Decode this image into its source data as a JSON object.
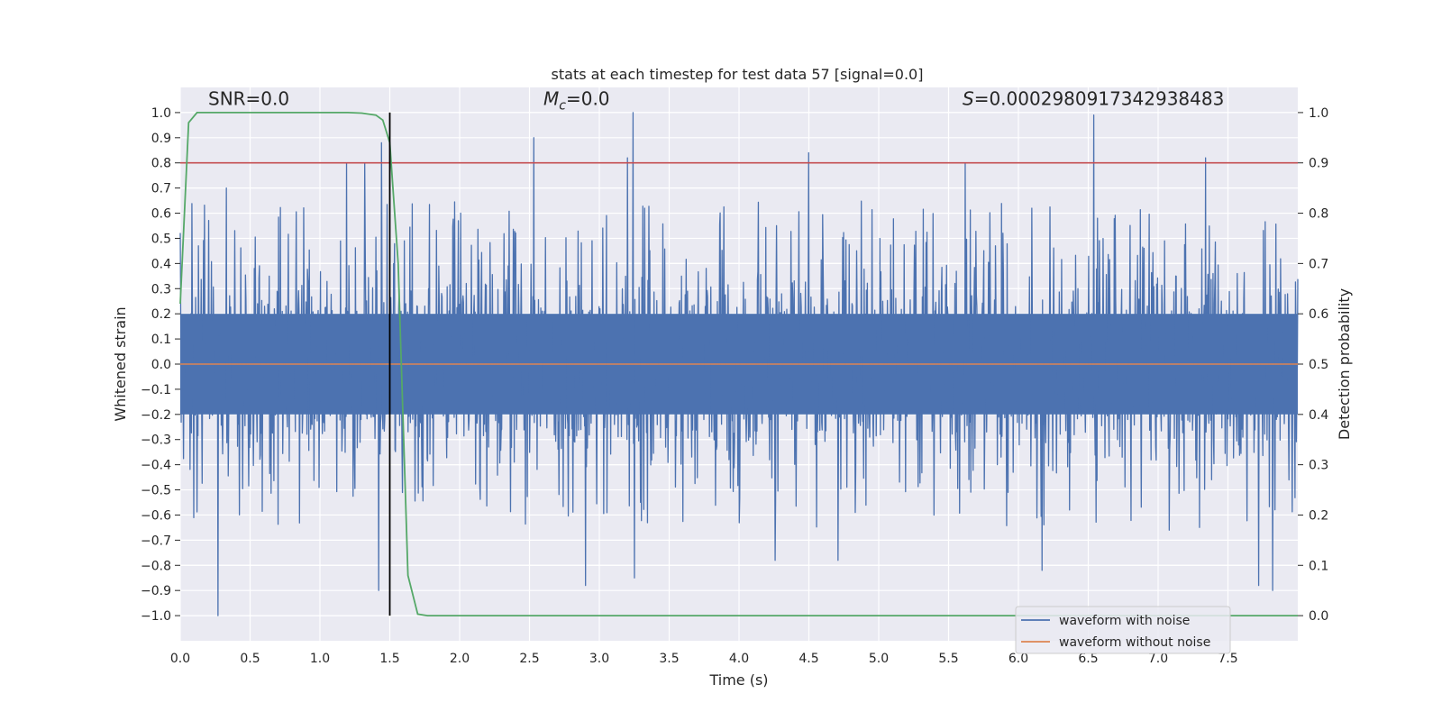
{
  "chart_data": {
    "type": "line",
    "title": "stats at each timestep for test data 57 [signal=0.0]",
    "xlabel": "Time (s)",
    "ylabel": "Whitened strain",
    "y2label": "Detection probability",
    "xlim": [
      0.0,
      8.0
    ],
    "ylim": [
      -1.1,
      1.1
    ],
    "y2lim": [
      -0.05,
      1.05
    ],
    "x_ticks": [
      0.0,
      0.5,
      1.0,
      1.5,
      2.0,
      2.5,
      3.0,
      3.5,
      4.0,
      4.5,
      5.0,
      5.5,
      6.0,
      6.5,
      7.0,
      7.5
    ],
    "x_tick_labels": [
      "0.0",
      "0.5",
      "1.0",
      "1.5",
      "2.0",
      "2.5",
      "3.0",
      "3.5",
      "4.0",
      "4.5",
      "5.0",
      "5.5",
      "6.0",
      "6.5",
      "7.0",
      "7.5"
    ],
    "y_ticks": [
      1.0,
      0.9,
      0.8,
      0.7,
      0.6,
      0.5,
      0.4,
      0.3,
      0.2,
      0.1,
      0.0,
      -0.1,
      -0.2,
      -0.3,
      -0.4,
      -0.5,
      -0.6,
      -0.7,
      -0.8,
      -0.9,
      -1.0
    ],
    "y_tick_labels": [
      "1.0",
      "0.9",
      "0.8",
      "0.7",
      "0.6",
      "0.5",
      "0.4",
      "0.3",
      "0.2",
      "0.1",
      "0.0",
      "−0.1",
      "−0.2",
      "−0.3",
      "−0.4",
      "−0.5",
      "−0.6",
      "−0.7",
      "−0.8",
      "−0.9",
      "−1.0"
    ],
    "y2_ticks": [
      1.0,
      0.9,
      0.8,
      0.7,
      0.6,
      0.5,
      0.4,
      0.3,
      0.2,
      0.1,
      0.0
    ],
    "y2_tick_labels": [
      "1.0",
      "0.9",
      "0.8",
      "0.7",
      "0.6",
      "0.5",
      "0.4",
      "0.3",
      "0.2",
      "0.1",
      "0.0"
    ],
    "grid": true,
    "threshold": {
      "value": 0.8,
      "axis": "y",
      "color": "#c44e52"
    },
    "marker_line": {
      "x": 1.5,
      "y_range": [
        -1.0,
        1.0
      ],
      "color": "#000000"
    },
    "annotations": [
      {
        "text": "SNR=0.0",
        "x": 0.2,
        "y": 1.03
      },
      {
        "prefix": "M",
        "subscript": "c",
        "text": "=0.0",
        "x": 2.6,
        "y": 1.03
      },
      {
        "prefix": "S",
        "text": "=0.0002980917342938483",
        "x": 5.6,
        "y": 1.03
      }
    ],
    "series": [
      {
        "name": "waveform with noise",
        "color": "#4c72b0",
        "axis": "y",
        "style": "dense-noise",
        "n_points": 2400,
        "core_amplitude": 0.2,
        "envelope_typical": [
          -0.45,
          0.5
        ],
        "peaks": [
          {
            "x": 0.27,
            "y": -1.0
          },
          {
            "x": 0.33,
            "y": 0.7
          },
          {
            "x": 1.19,
            "y": 0.8
          },
          {
            "x": 1.32,
            "y": 0.8
          },
          {
            "x": 1.42,
            "y": -0.9
          },
          {
            "x": 1.44,
            "y": 0.88
          },
          {
            "x": 2.53,
            "y": 0.9
          },
          {
            "x": 2.9,
            "y": -0.88
          },
          {
            "x": 3.2,
            "y": 0.82
          },
          {
            "x": 3.24,
            "y": 1.0
          },
          {
            "x": 3.25,
            "y": -0.85
          },
          {
            "x": 4.26,
            "y": -0.78
          },
          {
            "x": 4.5,
            "y": 0.84
          },
          {
            "x": 4.71,
            "y": -0.78
          },
          {
            "x": 5.62,
            "y": 0.8
          },
          {
            "x": 6.17,
            "y": -0.82
          },
          {
            "x": 6.54,
            "y": 0.99
          },
          {
            "x": 7.08,
            "y": -0.66
          },
          {
            "x": 7.34,
            "y": 0.82
          },
          {
            "x": 7.72,
            "y": -0.88
          },
          {
            "x": 7.82,
            "y": -0.9
          }
        ]
      },
      {
        "name": "waveform without noise",
        "color": "#dd8452",
        "axis": "y",
        "x": [
          0.0,
          8.0
        ],
        "values": [
          0.0,
          0.0
        ]
      },
      {
        "name": "detection probability",
        "color": "#55a868",
        "axis": "y2",
        "show_in_legend": false,
        "x": [
          0.0,
          0.06,
          0.12,
          0.2,
          0.3,
          0.5,
          0.75,
          1.0,
          1.2,
          1.3,
          1.4,
          1.45,
          1.5,
          1.56,
          1.63,
          1.7,
          1.77,
          1.85,
          2.0,
          3.0,
          4.0,
          5.0,
          6.0,
          7.0,
          8.0
        ],
        "values": [
          0.62,
          0.98,
          1.0,
          1.0,
          1.0,
          1.0,
          1.0,
          1.0,
          1.0,
          0.999,
          0.995,
          0.985,
          0.94,
          0.7,
          0.08,
          0.003,
          0.0,
          0.0,
          0.0,
          0.0,
          0.0,
          0.0,
          0.0,
          0.0,
          0.0
        ]
      }
    ],
    "legend": {
      "location": "lower-right",
      "entries": [
        "waveform with noise",
        "waveform without noise"
      ]
    }
  }
}
